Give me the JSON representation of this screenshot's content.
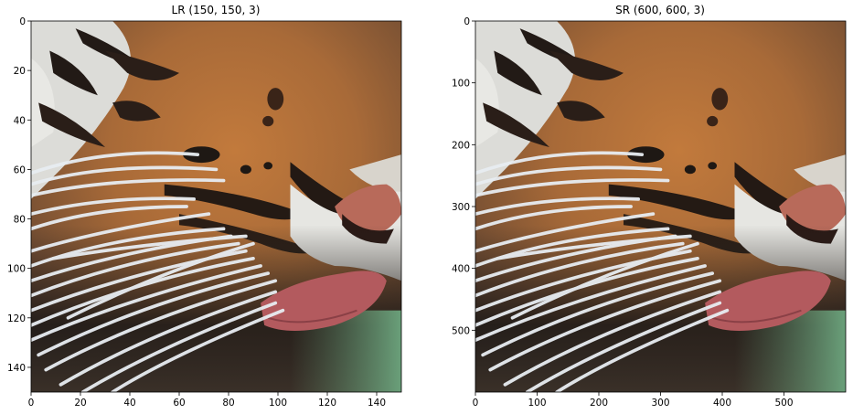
{
  "panels": [
    {
      "title": "LR (150, 150, 3)",
      "x_ticks": [
        0,
        20,
        40,
        60,
        80,
        100,
        120,
        140
      ],
      "y_ticks": [
        0,
        20,
        40,
        60,
        80,
        100,
        120,
        140
      ],
      "x_range": [
        0,
        150
      ],
      "y_range": [
        0,
        150
      ]
    },
    {
      "title": "SR (600, 600, 3)",
      "x_ticks": [
        0,
        100,
        200,
        300,
        400,
        500
      ],
      "y_ticks": [
        0,
        100,
        200,
        300,
        400,
        500
      ],
      "x_range": [
        0,
        600
      ],
      "y_range": [
        0,
        600
      ]
    }
  ],
  "image_subject": "tiger-face-closeup-icon"
}
